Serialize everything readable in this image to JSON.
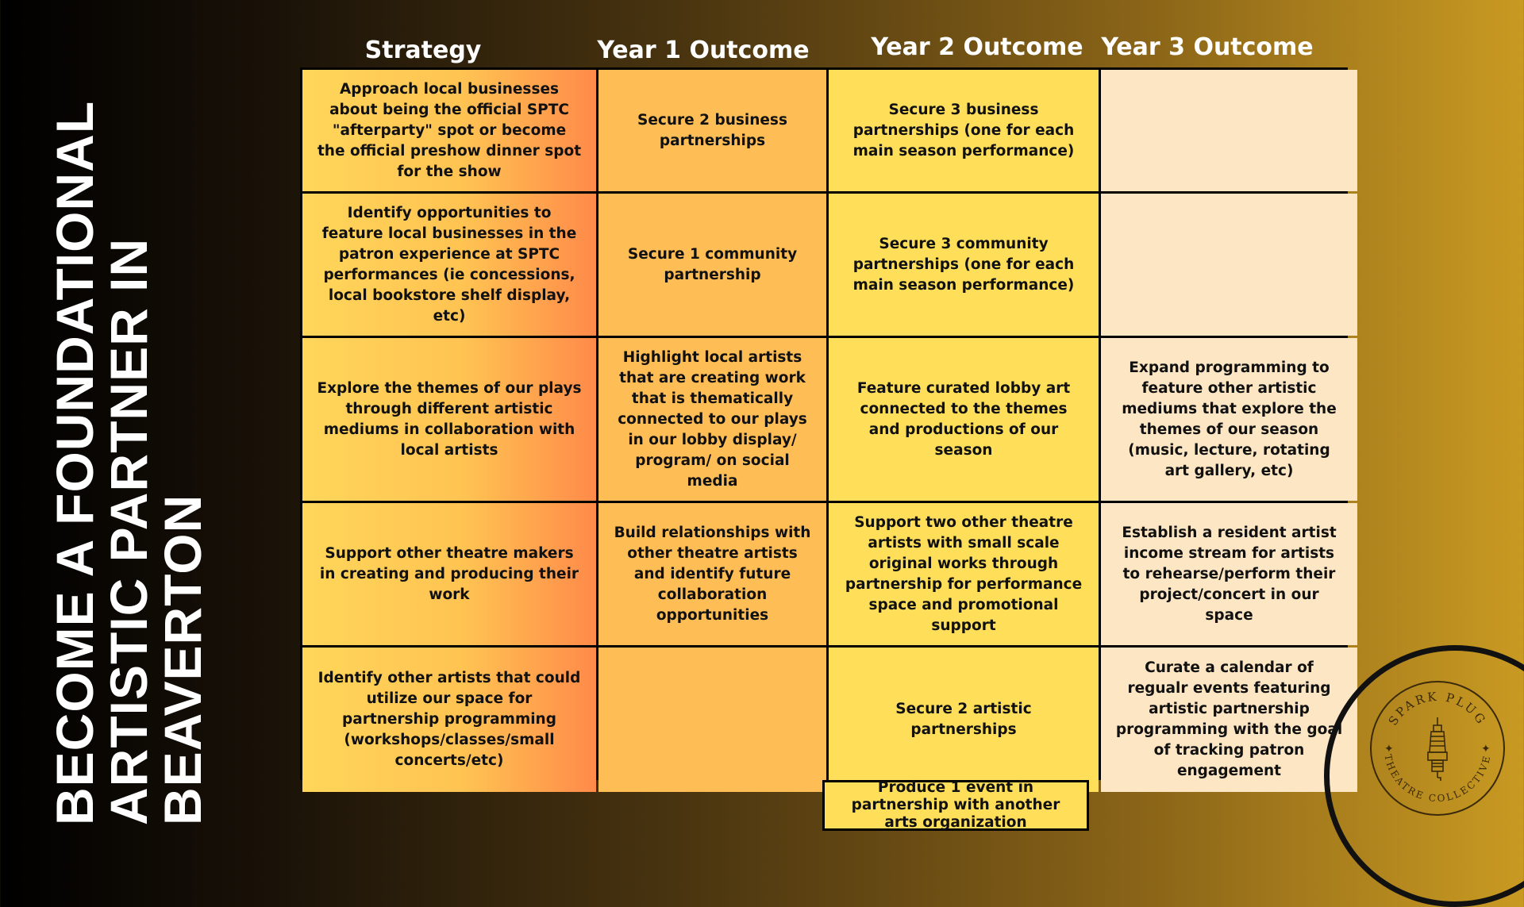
{
  "side_title": [
    "BECOME A FOUNDATIONAL",
    "ARTISTIC PARTNER IN",
    "BEAVERTON"
  ],
  "headers": {
    "strategy": "Strategy",
    "year1": "Year 1 Outcome",
    "year2": "Year 2 Outcome",
    "year3": "Year 3 Outcome"
  },
  "rows": [
    {
      "strategy": "Approach local businesses about being the official SPTC \"afterparty\" spot or become the official preshow dinner spot for the show",
      "year1": "Secure 2 business partnerships",
      "year2": "Secure 3 business partnerships (one for each main season performance)",
      "year3": ""
    },
    {
      "strategy": "Identify opportunities to feature local businesses in the patron experience at SPTC performances (ie concessions, local bookstore shelf display, etc)",
      "year1": "Secure 1 community partnership",
      "year2": "Secure 3 community partnerships (one for each main season performance)",
      "year3": ""
    },
    {
      "strategy": "Explore the themes of our plays through different artistic mediums in collaboration with local artists",
      "year1": "Highlight local artists that are creating work that is thematically connected to our plays in our lobby display/ program/ on social media",
      "year2": "Feature curated lobby art connected to the themes and productions of our season",
      "year3": "Expand programming to feature other artistic mediums that explore the themes of our season (music, lecture, rotating art gallery, etc)"
    },
    {
      "strategy": "Support other theatre makers in creating and producing their work",
      "year1": "Build relationships with other theatre artists and identify future collaboration opportunities",
      "year2": "Support two other theatre artists with small scale original works through partnership for performance space and promotional support",
      "year3": "Establish a resident artist income stream for artists to rehearse/perform their project/concert in our space"
    },
    {
      "strategy": "Identify other artists that could utilize our space for partnership programming (workshops/classes/small concerts/etc)",
      "year1": "",
      "year2": "Secure 2 artistic partnerships",
      "year3": "Curate a calendar of regualr events featuring artistic partnership programming with the goal of tracking patron engagement"
    }
  ],
  "extra_year2": "Produce 1 event in partnership with another arts organization",
  "logo": {
    "top_text": "SPARK PLUG",
    "bottom_text": "THEATRE COLLECTIVE",
    "icon": "spark-plug-icon"
  },
  "colors": {
    "strategy_col": "#ffc352",
    "year1_col": "#ffbd55",
    "year2_col": "#ffdf5a",
    "year3_col": "#fde6c4"
  }
}
